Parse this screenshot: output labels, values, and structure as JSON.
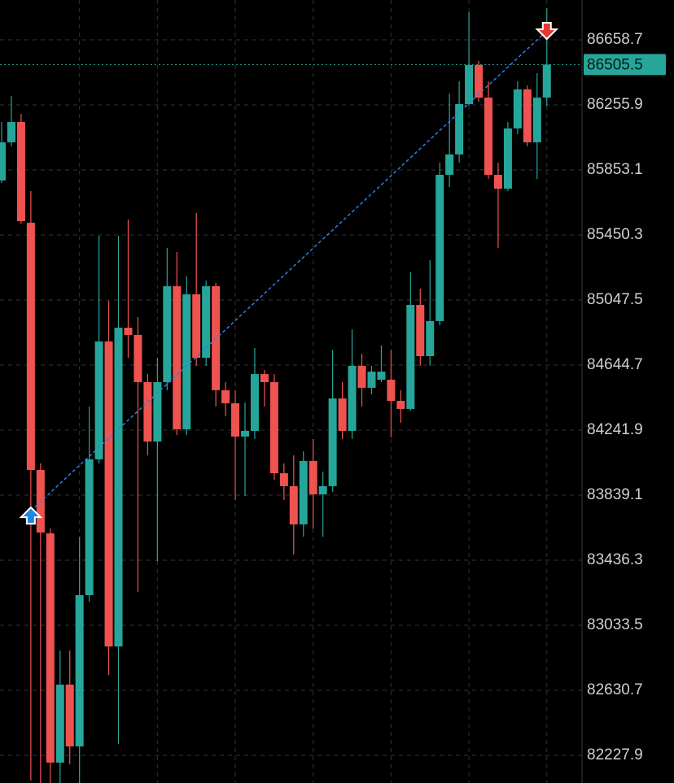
{
  "chart_data": {
    "type": "candlestick",
    "categories": [
      null,
      null,
      null,
      null,
      null,
      null,
      null,
      null,
      null,
      null,
      null,
      null,
      null,
      null,
      null,
      null,
      null,
      null,
      null,
      null,
      null,
      null,
      null,
      null,
      null,
      null,
      null,
      null,
      null,
      null,
      null,
      null,
      null,
      null,
      null,
      null,
      null,
      null,
      null,
      null,
      null,
      null,
      null,
      null,
      null,
      null,
      null,
      null,
      null,
      null,
      null,
      null,
      null,
      null,
      null,
      null,
      null
    ],
    "open": [
      85788,
      86024,
      86150,
      85526,
      83995,
      83603,
      82183,
      82666,
      82283,
      83220,
      84061,
      84791,
      82902,
      84876,
      84831,
      84539,
      84171,
      84539,
      85133,
      84247,
      85083,
      84690,
      85133,
      84489,
      84408,
      84202,
      84237,
      84589,
      84539,
      83975,
      83895,
      83658,
      84051,
      83844,
      83895,
      84438,
      84237,
      84640,
      84504,
      84554,
      84554,
      84423,
      84373,
      85017,
      84700,
      84917,
      85823,
      85949,
      86261,
      86503,
      86301,
      85823,
      85737,
      86110,
      86352,
      86024,
      86301
    ],
    "high": [
      86150,
      86311,
      86200,
      85722,
      84036,
      83633,
      82877,
      82877,
      83582,
      84388,
      85445,
      85042,
      85445,
      85546,
      84942,
      84589,
      84690,
      85370,
      85345,
      85194,
      85586,
      85168,
      85153,
      84539,
      84489,
      84413,
      84750,
      84614,
      84589,
      84036,
      84086,
      84111,
      84187,
      83985,
      84740,
      84539,
      84866,
      84715,
      84640,
      84766,
      84740,
      84489,
      85219,
      85118,
      85294,
      85898,
      86326,
      86402,
      86830,
      86528,
      86402,
      85898,
      86150,
      86402,
      86377,
      86452,
      86855
    ],
    "low": [
      85773,
      85999,
      85521,
      82072,
      82057,
      82057,
      82057,
      82173,
      82057,
      83180,
      84036,
      82726,
      82298,
      84690,
      83240,
      84086,
      83431,
      84489,
      84212,
      84212,
      84640,
      84640,
      84388,
      84327,
      83809,
      83834,
      84187,
      84388,
      83935,
      83809,
      83472,
      83582,
      83633,
      83582,
      83859,
      84187,
      84187,
      84388,
      84463,
      84539,
      84197,
      84287,
      84363,
      84640,
      84640,
      84891,
      85747,
      85898,
      86251,
      86276,
      85798,
      85370,
      85722,
      86075,
      85999,
      85798,
      86251
    ],
    "close": [
      86024,
      86150,
      85536,
      83995,
      83608,
      82183,
      82666,
      82283,
      83220,
      84061,
      84791,
      82902,
      84876,
      84831,
      84539,
      84171,
      84539,
      85133,
      84247,
      85083,
      84690,
      85133,
      84489,
      84408,
      84202,
      84237,
      84589,
      84539,
      83975,
      83895,
      83658,
      84051,
      83844,
      83895,
      84438,
      84237,
      84640,
      84504,
      84604,
      84604,
      84423,
      84373,
      85017,
      84700,
      84917,
      85823,
      85949,
      86261,
      86503,
      86301,
      85823,
      85737,
      86110,
      86352,
      86024,
      86301,
      86505.5
    ],
    "up_color": "#26a69a",
    "down_color": "#ef5350",
    "last_price": 86505.5,
    "entry": {
      "x": 3,
      "value": 83743,
      "color": "#1e88e5"
    },
    "exit": {
      "x": 56,
      "value": 86714,
      "color": "#e53935"
    },
    "ylim": [
      82056.7,
      86905.4
    ],
    "yticks": [
      86658.7,
      86255.9,
      85853.1,
      85450.3,
      85047.5,
      84644.7,
      84241.9,
      83839.1,
      83436.3,
      83033.5,
      82630.7,
      82227.9
    ],
    "grid": true
  }
}
